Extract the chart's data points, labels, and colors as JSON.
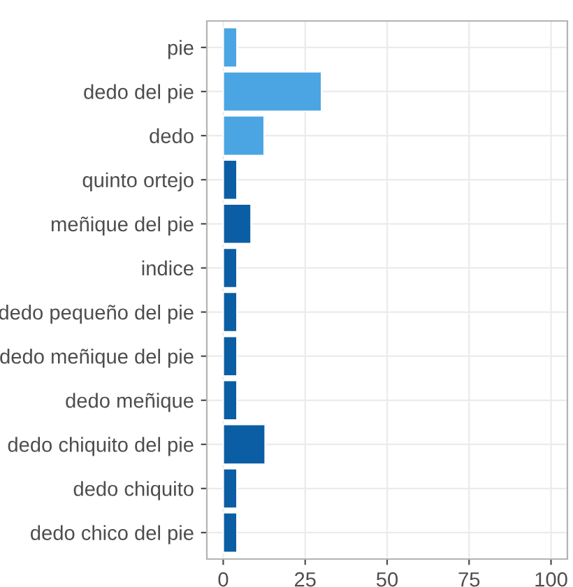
{
  "chart_data": {
    "type": "bar",
    "orientation": "horizontal",
    "categories": [
      "pie",
      "dedo del pie",
      "dedo",
      "quinto ortejo",
      "meñique del pie",
      "indice",
      "dedo pequeño del pie",
      "dedo meñique del pie",
      "dedo meñique",
      "dedo chiquito del pie",
      "dedo chiquito",
      "dedo chico del pie"
    ],
    "values": [
      4.2,
      30,
      12.5,
      4.2,
      8.5,
      4.2,
      4.2,
      4.2,
      4.2,
      12.8,
      4.2,
      4.2
    ],
    "colors": [
      "#4ba5e3",
      "#4ba5e3",
      "#4ba5e3",
      "#0b5ea4",
      "#0b5ea4",
      "#0b5ea4",
      "#0b5ea4",
      "#0b5ea4",
      "#0b5ea4",
      "#0b5ea4",
      "#0b5ea4",
      "#0b5ea4"
    ],
    "xlim": [
      -5,
      105
    ],
    "xticks": [
      0,
      25,
      50,
      75,
      100
    ],
    "grid": true
  }
}
